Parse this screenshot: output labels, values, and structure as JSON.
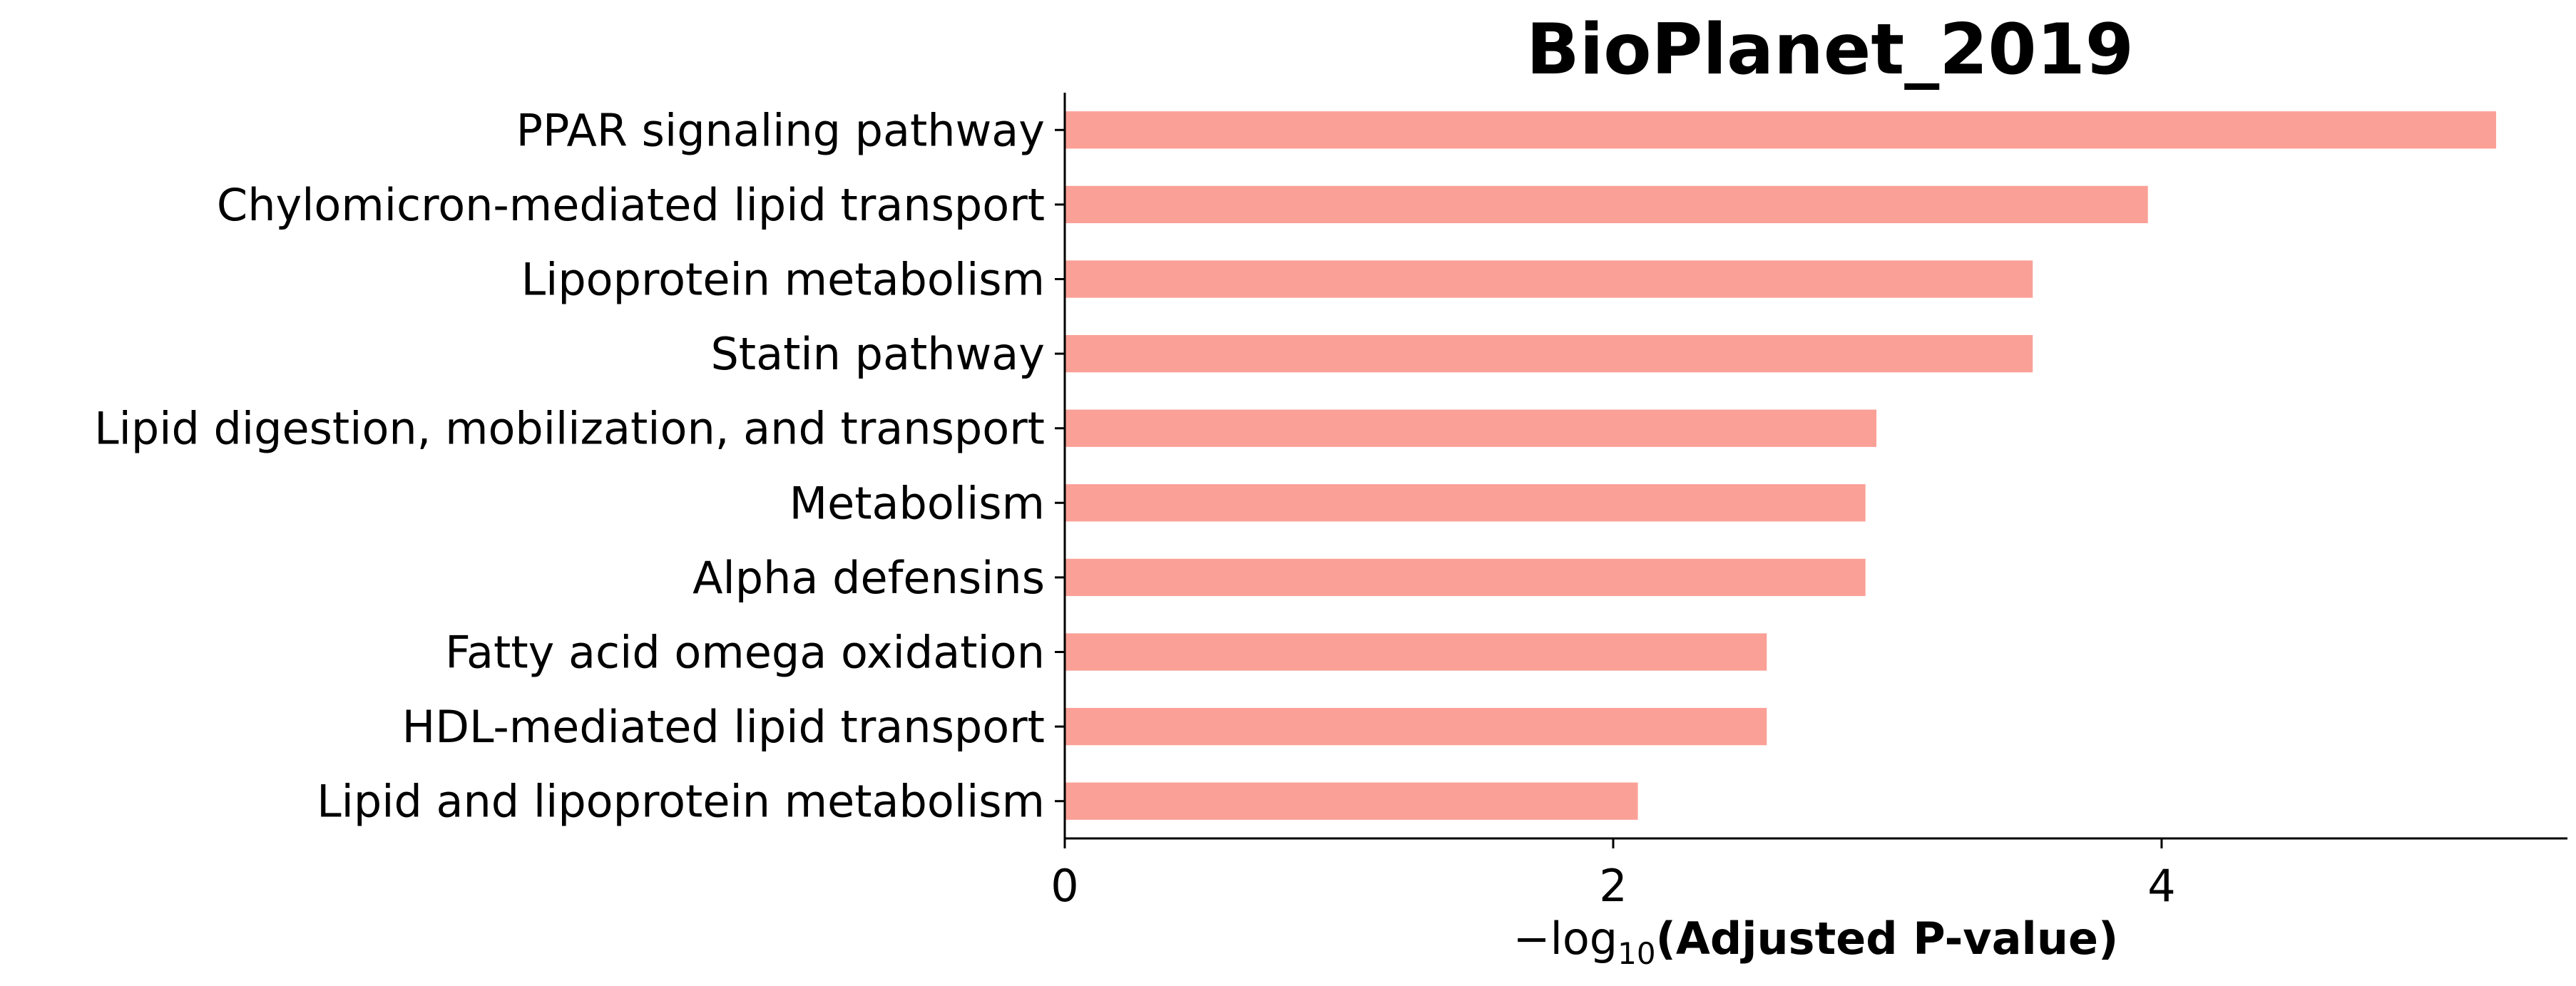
{
  "colors": {
    "bar": "#fba096",
    "axis": "#000000",
    "background": "#ffffff"
  },
  "chart_data": {
    "type": "bar",
    "orientation": "horizontal",
    "title": "BioPlanet_2019",
    "xlabel_prefix": "−log",
    "xlabel_subscript": "10",
    "xlabel_main": "(Adjusted P-value)",
    "ylabel": "",
    "categories": [
      "PPAR signaling pathway",
      "Chylomicron-mediated lipid transport",
      "Lipoprotein metabolism",
      "Statin pathway",
      "Lipid digestion, mobilization, and transport",
      "Metabolism",
      "Alpha defensins",
      "Fatty acid omega oxidation",
      "HDL-mediated lipid transport",
      "Lipid and lipoprotein metabolism"
    ],
    "values": [
      5.22,
      3.95,
      3.53,
      3.53,
      2.96,
      2.92,
      2.92,
      2.56,
      2.56,
      2.09
    ],
    "xlim": [
      0,
      5.48
    ],
    "xticks": [
      0,
      2,
      4
    ],
    "grid": false
  }
}
